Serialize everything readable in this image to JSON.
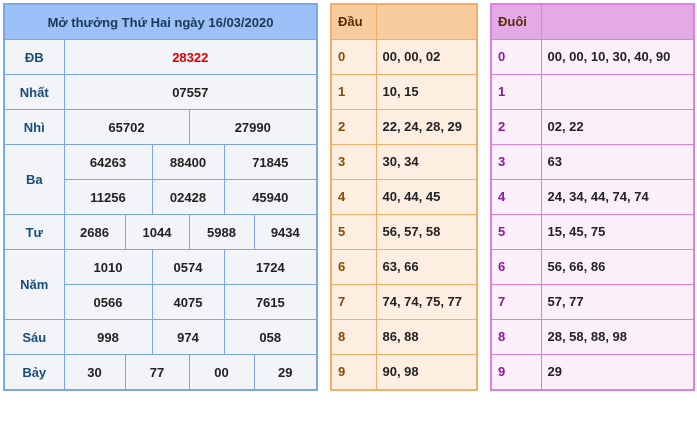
{
  "results": {
    "title": "Mở thưởng Thứ Hai ngày 16/03/2020",
    "prizes": [
      {
        "label": "ĐB",
        "values": [
          "28322"
        ]
      },
      {
        "label": "Nhất",
        "values": [
          "07557"
        ]
      },
      {
        "label": "Nhì",
        "values": [
          "65702",
          "27990"
        ]
      },
      {
        "label": "Ba",
        "values": [
          "64263",
          "88400",
          "71845",
          "11256",
          "02428",
          "45940"
        ]
      },
      {
        "label": "Tư",
        "values": [
          "2686",
          "1044",
          "5988",
          "9434"
        ]
      },
      {
        "label": "Năm",
        "values": [
          "1010",
          "0574",
          "1724",
          "0566",
          "4075",
          "7615"
        ]
      },
      {
        "label": "Sáu",
        "values": [
          "998",
          "974",
          "058"
        ]
      },
      {
        "label": "Bảy",
        "values": [
          "30",
          "77",
          "00",
          "29"
        ]
      }
    ]
  },
  "dau": {
    "header": "Đầu",
    "rows": [
      {
        "k": "0",
        "v": "00, 00, 02"
      },
      {
        "k": "1",
        "v": "10, 15"
      },
      {
        "k": "2",
        "v": "22, 24, 28, 29"
      },
      {
        "k": "3",
        "v": "30, 34"
      },
      {
        "k": "4",
        "v": "40, 44, 45"
      },
      {
        "k": "5",
        "v": "56, 57, 58"
      },
      {
        "k": "6",
        "v": "63, 66"
      },
      {
        "k": "7",
        "v": "74, 74, 75, 77"
      },
      {
        "k": "8",
        "v": "86, 88"
      },
      {
        "k": "9",
        "v": "90, 98"
      }
    ]
  },
  "duoi": {
    "header": "Đuôi",
    "rows": [
      {
        "k": "0",
        "v": "00, 00, 10, 30, 40, 90"
      },
      {
        "k": "1",
        "v": ""
      },
      {
        "k": "2",
        "v": "02, 22"
      },
      {
        "k": "3",
        "v": "63"
      },
      {
        "k": "4",
        "v": "24, 34, 44, 74, 74"
      },
      {
        "k": "5",
        "v": "15, 45, 75"
      },
      {
        "k": "6",
        "v": "56, 66, 86"
      },
      {
        "k": "7",
        "v": "57, 77"
      },
      {
        "k": "8",
        "v": "28, 58, 88, 98"
      },
      {
        "k": "9",
        "v": "29"
      }
    ]
  },
  "colors": {
    "blue_header": "#9cc0f7",
    "orange_header": "#f9cc9e",
    "pink_header": "#e4aae6",
    "special_prize": "#e00000"
  }
}
